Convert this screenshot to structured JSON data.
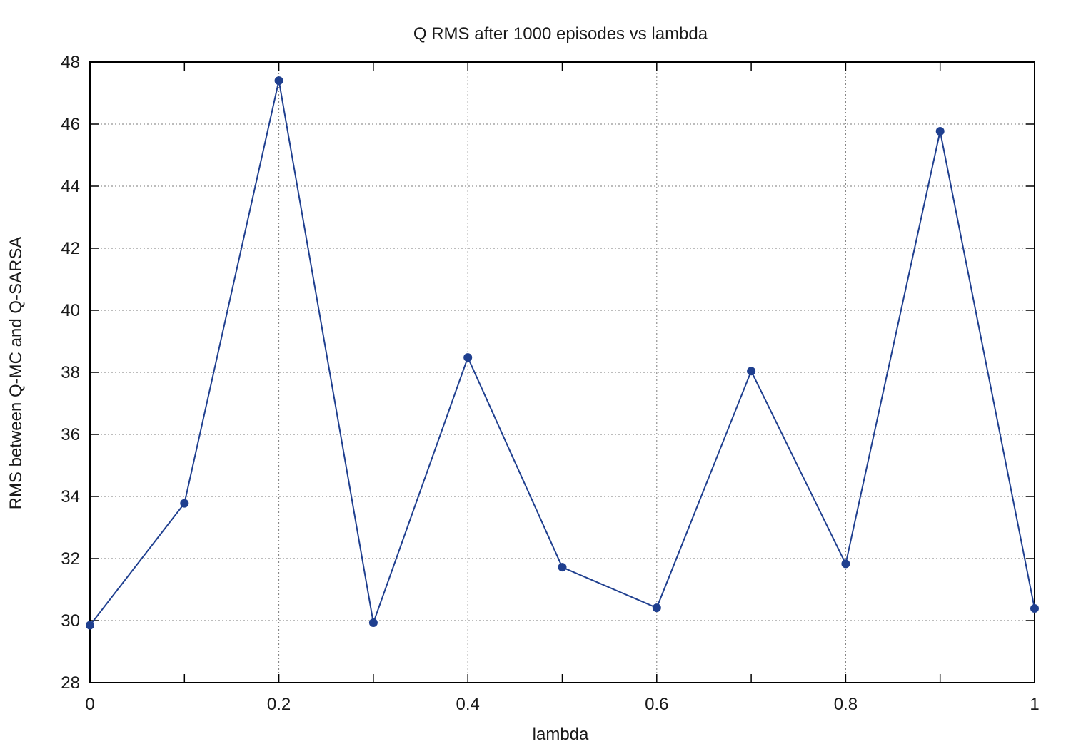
{
  "chart_data": {
    "type": "line",
    "title": "Q RMS after 1000 episodes vs lambda",
    "xlabel": "lambda",
    "ylabel": "RMS between Q-MC and Q-SARSA",
    "xlim": [
      0,
      1
    ],
    "ylim": [
      28,
      48
    ],
    "xticks": [
      0,
      0.1,
      0.2,
      0.3,
      0.4,
      0.5,
      0.6,
      0.7,
      0.8,
      0.9,
      1
    ],
    "xtick_labels": [
      "0",
      "0.2",
      "0.4",
      "0.6",
      "0.8",
      "1"
    ],
    "xtick_label_values": [
      0,
      0.2,
      0.4,
      0.6,
      0.8,
      1
    ],
    "yticks": [
      28,
      30,
      32,
      34,
      36,
      38,
      40,
      42,
      44,
      46,
      48
    ],
    "ytick_labels": [
      "28",
      "30",
      "32",
      "34",
      "36",
      "38",
      "40",
      "42",
      "44",
      "46",
      "48"
    ],
    "grid": true,
    "series": [
      {
        "color": "#1f3f8f",
        "x": [
          0,
          0.1,
          0.2,
          0.3,
          0.4,
          0.5,
          0.6,
          0.7,
          0.8,
          0.9,
          1.0
        ],
        "y": [
          29.85,
          33.78,
          47.4,
          29.93,
          38.48,
          31.72,
          30.41,
          38.04,
          31.83,
          45.77,
          30.39
        ]
      }
    ]
  }
}
